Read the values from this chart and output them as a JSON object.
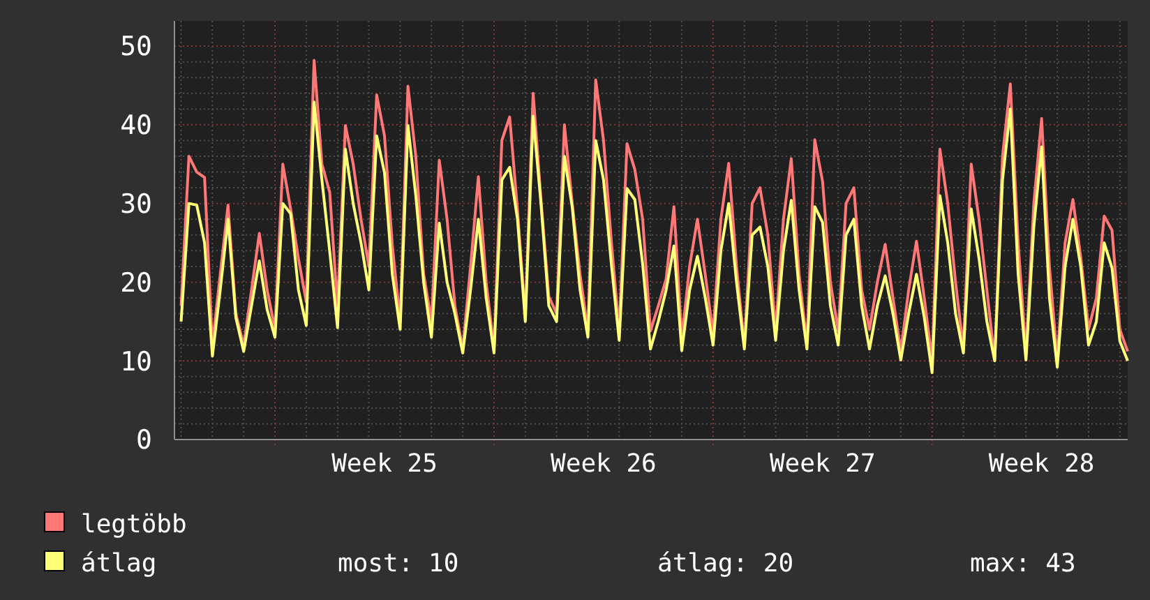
{
  "chart_data": {
    "type": "line",
    "categories": [
      null,
      null,
      null,
      null,
      null,
      null,
      null,
      null,
      null,
      null,
      null,
      null,
      null,
      null,
      null,
      null,
      null,
      null,
      null,
      null,
      null,
      null,
      null,
      null,
      null,
      null,
      "Week 25",
      null,
      null,
      null,
      null,
      null,
      null,
      null,
      null,
      null,
      null,
      null,
      null,
      null,
      null,
      null,
      null,
      null,
      null,
      null,
      null,
      null,
      null,
      null,
      null,
      null,
      null,
      null,
      "Week 26",
      null,
      null,
      null,
      null,
      null,
      null,
      null,
      null,
      null,
      null,
      null,
      null,
      null,
      null,
      null,
      null,
      null,
      null,
      null,
      null,
      null,
      null,
      null,
      null,
      null,
      null,
      null,
      "Week 27",
      null,
      null,
      null,
      null,
      null,
      null,
      null,
      null,
      null,
      null,
      null,
      null,
      null,
      null,
      null,
      null,
      null,
      null,
      null,
      null,
      null,
      null,
      null,
      null,
      null,
      null,
      null,
      "Week 28",
      null,
      null,
      null,
      null,
      null,
      null,
      null,
      null,
      null,
      null,
      null
    ],
    "series": [
      {
        "name": "legtöbb",
        "color": "#ff7878",
        "values": [
          17,
          36,
          34,
          33.3,
          12,
          21,
          29.8,
          16,
          12,
          19,
          26.2,
          19,
          14,
          35,
          29.3,
          23,
          17.5,
          48.2,
          35,
          31.4,
          16.8,
          39.9,
          35,
          28,
          22,
          43.8,
          38.6,
          24.7,
          15,
          44.9,
          36,
          21.1,
          15,
          35.5,
          28,
          17,
          11.5,
          22,
          33.4,
          20,
          11.5,
          38,
          41,
          29.2,
          15.6,
          44,
          30.6,
          18.2,
          16,
          40,
          30,
          21,
          13.8,
          45.7,
          38,
          25.2,
          13.8,
          37.6,
          34.3,
          28,
          13.8,
          17,
          20.4,
          29.6,
          12.8,
          22,
          28,
          21,
          13.4,
          28,
          35.1,
          22,
          12,
          30,
          32,
          26,
          13.8,
          28,
          35.7,
          21,
          12.1,
          38.1,
          32.8,
          20,
          13.8,
          30,
          32,
          19,
          14,
          20,
          24.8,
          18,
          11.2,
          19,
          25.2,
          18,
          10,
          36.9,
          30,
          20,
          11.5,
          35,
          28,
          19,
          10.1,
          36,
          45.2,
          25,
          11,
          30,
          40.8,
          22,
          10.1,
          25,
          30.5,
          23.2,
          14,
          18,
          28.4,
          26.6,
          14,
          11.2
        ]
      },
      {
        "name": "átlag",
        "color": "#ffff78",
        "values": [
          15,
          30,
          29.8,
          25,
          10.6,
          19,
          28,
          15.5,
          11.2,
          17,
          22.7,
          16.5,
          13,
          30,
          28.7,
          19,
          14.5,
          42.9,
          33,
          23.9,
          14.2,
          36.9,
          30,
          25,
          19,
          38.6,
          33.9,
          21,
          14,
          39.9,
          31,
          20,
          13,
          27.5,
          20,
          16,
          11,
          19,
          28,
          18,
          11,
          33,
          34.6,
          28,
          15,
          41.1,
          30,
          17,
          15,
          36,
          29.5,
          19,
          13,
          38,
          33,
          22.3,
          12.6,
          31.9,
          30.5,
          22.3,
          11.5,
          15,
          19,
          24.6,
          11.3,
          19,
          23.3,
          18,
          12,
          24,
          30,
          20,
          11.5,
          26,
          27,
          22,
          12.6,
          24,
          30.4,
          19,
          11.5,
          29.6,
          27.6,
          17,
          12,
          26,
          28,
          17,
          11.5,
          17,
          20.8,
          16,
          10.1,
          16,
          21,
          15.5,
          8.5,
          31,
          25,
          16,
          11,
          29.3,
          23,
          15,
          10,
          33,
          42,
          21,
          10.1,
          27,
          37.2,
          18,
          9.2,
          22,
          28,
          22,
          12,
          15,
          25,
          21.8,
          12.5,
          10
        ]
      }
    ],
    "ylim": [
      0,
      53.2
    ],
    "yticks": [
      0,
      10,
      20,
      30,
      40,
      50
    ],
    "grid": true,
    "legend": "bottom left",
    "annotations": [
      "most: 10",
      "átlag: 20",
      "max: 43"
    ]
  }
}
